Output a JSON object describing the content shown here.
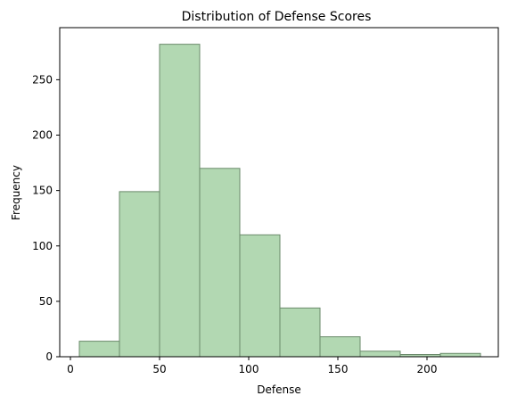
{
  "chart_data": {
    "type": "bar",
    "title": "Distribution of Defense Scores",
    "xlabel": "Defense",
    "ylabel": "Frequency",
    "xlim": [
      -6,
      240
    ],
    "ylim": [
      0,
      297
    ],
    "xticks": [
      0,
      50,
      100,
      150,
      200
    ],
    "yticks": [
      0,
      50,
      100,
      150,
      200,
      250
    ],
    "bins": [
      {
        "start": 5,
        "end": 27.5,
        "count": 14
      },
      {
        "start": 27.5,
        "end": 50,
        "count": 149
      },
      {
        "start": 50,
        "end": 72.5,
        "count": 282
      },
      {
        "start": 72.5,
        "end": 95,
        "count": 170
      },
      {
        "start": 95,
        "end": 117.5,
        "count": 110
      },
      {
        "start": 117.5,
        "end": 140,
        "count": 44
      },
      {
        "start": 140,
        "end": 162.5,
        "count": 18
      },
      {
        "start": 162.5,
        "end": 185,
        "count": 5
      },
      {
        "start": 185,
        "end": 207.5,
        "count": 2
      },
      {
        "start": 207.5,
        "end": 230,
        "count": 3
      }
    ],
    "bar_color": "#b2d8b2",
    "bar_edge_color": "#6a8a6a",
    "grid": false,
    "legend": false
  }
}
